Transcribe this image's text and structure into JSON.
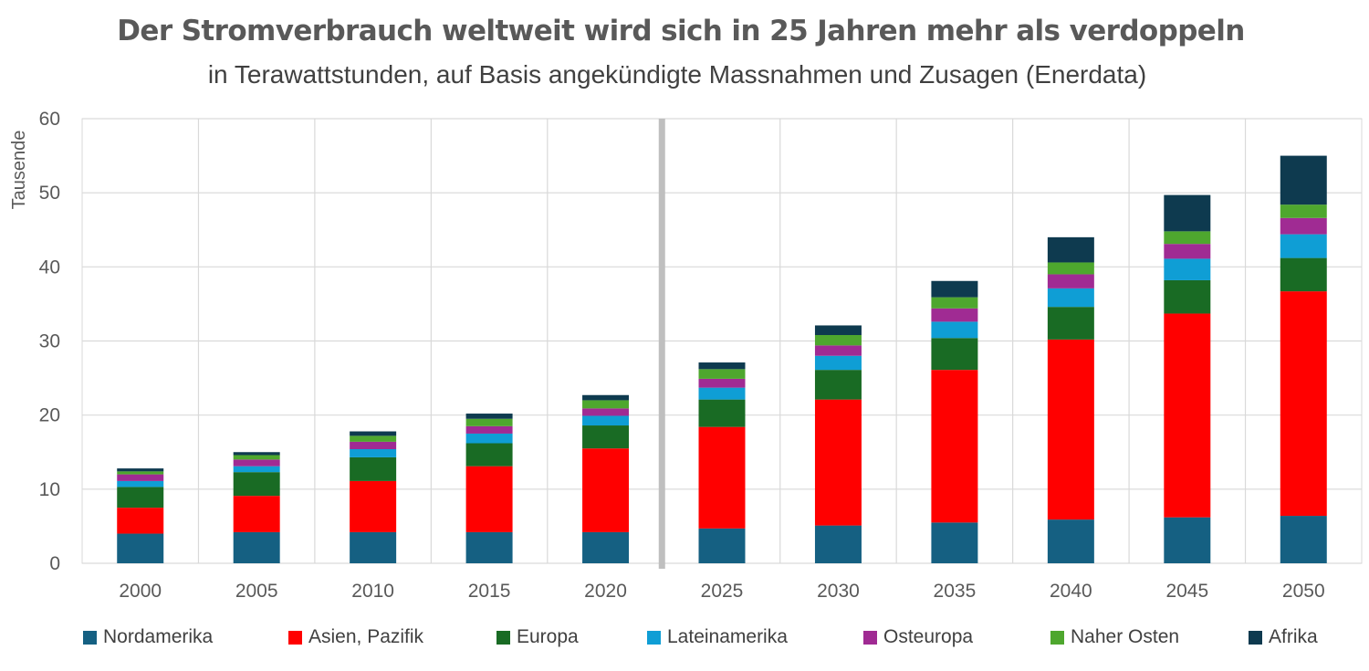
{
  "title": "Der Stromverbrauch weltweit wird sich in 25 Jahren mehr als verdoppeln",
  "subtitle": "in Terawattstunden, auf Basis angekündigte Massnahmen und Zusagen (Enerdata)",
  "chart_data": {
    "type": "bar",
    "stacked": true,
    "ylabel": "Tausende",
    "ylim": [
      0,
      60
    ],
    "yticks": [
      0,
      10,
      20,
      30,
      40,
      50,
      60
    ],
    "ytick_labels": [
      "0",
      "10",
      "20",
      "30",
      "40",
      "50",
      "60"
    ],
    "grid": true,
    "legend_position": "bottom",
    "forecast_divider_after": "2020",
    "categories": [
      "2000",
      "2005",
      "2010",
      "2015",
      "2020",
      "2025",
      "2030",
      "2035",
      "2040",
      "2045",
      "2050"
    ],
    "series": [
      {
        "name": "Nordamerika",
        "color": "#156082",
        "values": [
          4.0,
          4.2,
          4.2,
          4.2,
          4.2,
          4.7,
          5.1,
          5.5,
          5.9,
          6.2,
          6.4
        ]
      },
      {
        "name": "Asien, Pazifik",
        "color": "#FF0000",
        "values": [
          3.5,
          4.9,
          6.9,
          8.9,
          11.3,
          13.7,
          17.0,
          20.6,
          24.3,
          27.5,
          30.3
        ]
      },
      {
        "name": "Europa",
        "color": "#196B24",
        "values": [
          2.8,
          3.2,
          3.2,
          3.1,
          3.1,
          3.7,
          4.0,
          4.3,
          4.4,
          4.5,
          4.5
        ]
      },
      {
        "name": "Lateinamerika",
        "color": "#0F9ED5",
        "values": [
          0.8,
          0.8,
          1.1,
          1.3,
          1.3,
          1.6,
          1.9,
          2.2,
          2.5,
          2.9,
          3.2
        ]
      },
      {
        "name": "Osteuropa",
        "color": "#A02B93",
        "values": [
          0.9,
          0.9,
          1.0,
          1.0,
          1.0,
          1.2,
          1.4,
          1.8,
          1.9,
          2.0,
          2.2
        ]
      },
      {
        "name": "Naher Osten",
        "color": "#4EA72E",
        "values": [
          0.4,
          0.6,
          0.8,
          1.0,
          1.1,
          1.3,
          1.4,
          1.5,
          1.6,
          1.7,
          1.8
        ]
      },
      {
        "name": "Afrika",
        "color": "#0E3A4F",
        "values": [
          0.4,
          0.4,
          0.6,
          0.7,
          0.7,
          0.9,
          1.3,
          2.2,
          3.4,
          4.9,
          6.6
        ]
      }
    ]
  }
}
